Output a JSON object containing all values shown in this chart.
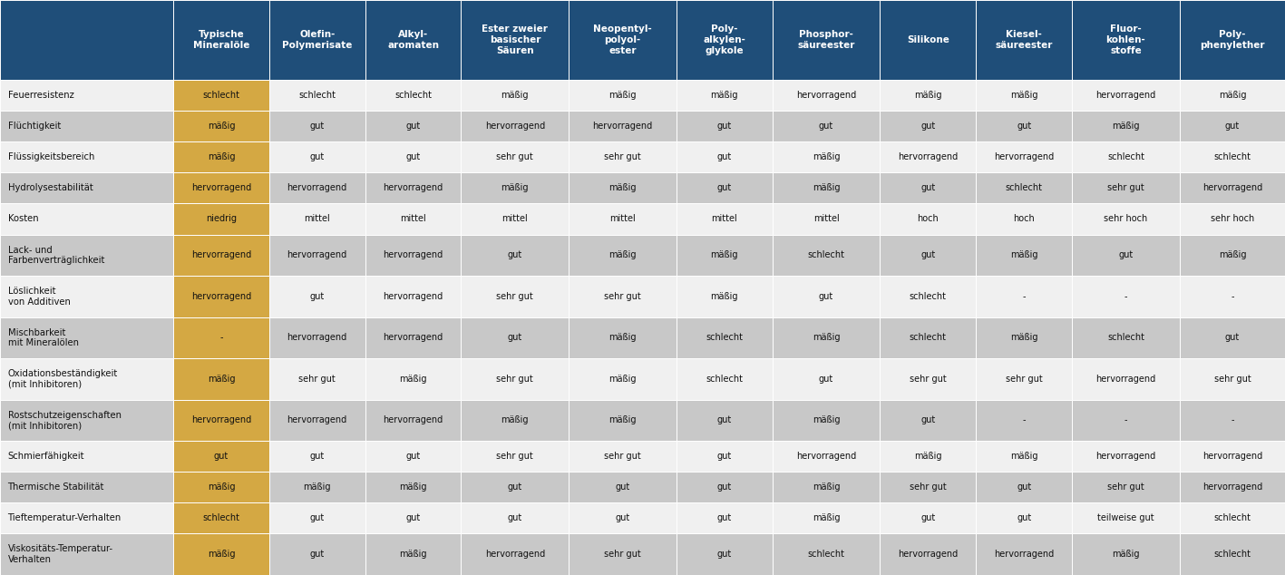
{
  "headers": [
    "",
    "Typische\nMineralöle",
    "Olefin-\nPolymerisate",
    "Alkyl-\naromaten",
    "Ester zweier\nbasischer\nSäuren",
    "Neopentyl-\npolyol-\nester",
    "Poly-\nalkylen-\nglykole",
    "Phosphor-\nsäureester",
    "Silikone",
    "Kiesel-\nsäureester",
    "Fluor-\nkohlen-\nstoffe",
    "Poly-\nphenylether"
  ],
  "rows": [
    {
      "label": "Feuerresistenz",
      "values": [
        "schlecht",
        "schlecht",
        "schlecht",
        "mäßig",
        "mäßig",
        "mäßig",
        "hervorragend",
        "mäßig",
        "mäßig",
        "hervorragend",
        "mäßig"
      ],
      "double": false
    },
    {
      "label": "Flüchtigkeit",
      "values": [
        "mäßig",
        "gut",
        "gut",
        "hervorragend",
        "hervorragend",
        "gut",
        "gut",
        "gut",
        "gut",
        "mäßig",
        "gut"
      ],
      "double": false
    },
    {
      "label": "Flüssigkeitsbereich",
      "values": [
        "mäßig",
        "gut",
        "gut",
        "sehr gut",
        "sehr gut",
        "gut",
        "mäßig",
        "hervorragend",
        "hervorragend",
        "schlecht",
        "schlecht"
      ],
      "double": false
    },
    {
      "label": "Hydrolysestabilität",
      "values": [
        "hervorragend",
        "hervorragend",
        "hervorragend",
        "mäßig",
        "mäßig",
        "gut",
        "mäßig",
        "gut",
        "schlecht",
        "sehr gut",
        "hervorragend"
      ],
      "double": false
    },
    {
      "label": "Kosten",
      "values": [
        "niedrig",
        "mittel",
        "mittel",
        "mittel",
        "mittel",
        "mittel",
        "mittel",
        "hoch",
        "hoch",
        "sehr hoch",
        "sehr hoch"
      ],
      "double": false
    },
    {
      "label": "Lack- und\nFarbenverträglichkeit",
      "values": [
        "hervorragend",
        "hervorragend",
        "hervorragend",
        "gut",
        "mäßig",
        "mäßig",
        "schlecht",
        "gut",
        "mäßig",
        "gut",
        "mäßig"
      ],
      "double": true
    },
    {
      "label": "Löslichkeit\nvon Additiven",
      "values": [
        "hervorragend",
        "gut",
        "hervorragend",
        "sehr gut",
        "sehr gut",
        "mäßig",
        "gut",
        "schlecht",
        "-",
        "-",
        "-"
      ],
      "double": true
    },
    {
      "label": "Mischbarkeit\nmit Mineralölen",
      "values": [
        "-",
        "hervorragend",
        "hervorragend",
        "gut",
        "mäßig",
        "schlecht",
        "mäßig",
        "schlecht",
        "mäßig",
        "schlecht",
        "gut"
      ],
      "double": true
    },
    {
      "label": "Oxidationsbeständigkeit\n(mit Inhibitoren)",
      "values": [
        "mäßig",
        "sehr gut",
        "mäßig",
        "sehr gut",
        "mäßig",
        "schlecht",
        "gut",
        "sehr gut",
        "sehr gut",
        "hervorragend",
        "sehr gut"
      ],
      "double": true
    },
    {
      "label": "Rostschutzeigenschaften\n(mit Inhibitoren)",
      "values": [
        "hervorragend",
        "hervorragend",
        "hervorragend",
        "mäßig",
        "mäßig",
        "gut",
        "mäßig",
        "gut",
        "-",
        "-",
        "-"
      ],
      "double": true
    },
    {
      "label": "Schmierfähigkeit",
      "values": [
        "gut",
        "gut",
        "gut",
        "sehr gut",
        "sehr gut",
        "gut",
        "hervorragend",
        "mäßig",
        "mäßig",
        "hervorragend",
        "hervorragend"
      ],
      "double": false
    },
    {
      "label": "Thermische Stabilität",
      "values": [
        "mäßig",
        "mäßig",
        "mäßig",
        "gut",
        "gut",
        "gut",
        "mäßig",
        "sehr gut",
        "gut",
        "sehr gut",
        "hervorragend"
      ],
      "double": false
    },
    {
      "label": "Tieftemperatur-Verhalten",
      "values": [
        "schlecht",
        "gut",
        "gut",
        "gut",
        "gut",
        "gut",
        "mäßig",
        "gut",
        "gut",
        "teilweise gut",
        "schlecht"
      ],
      "double": false
    },
    {
      "label": "Viskositäts-Temperatur-\nVerhalten",
      "values": [
        "mäßig",
        "gut",
        "mäßig",
        "hervorragend",
        "sehr gut",
        "gut",
        "schlecht",
        "hervorragend",
        "hervorragend",
        "mäßig",
        "schlecht"
      ],
      "double": true
    }
  ],
  "header_bg": "#1f4e79",
  "header_fg": "#ffffff",
  "mineral_col_bg": "#d4a843",
  "mineral_col_fg": "#111111",
  "row_light_bg": "#f0f0f0",
  "row_dark_bg": "#c8c8c8",
  "cell_text_color": "#111111",
  "border_color": "#ffffff",
  "fig_bg": "#ffffff",
  "col_widths_raw": [
    148,
    82,
    82,
    82,
    92,
    92,
    82,
    92,
    82,
    82,
    92,
    90
  ],
  "header_fontsize": 7.5,
  "cell_fontsize": 7.0,
  "label_fontsize": 7.2
}
